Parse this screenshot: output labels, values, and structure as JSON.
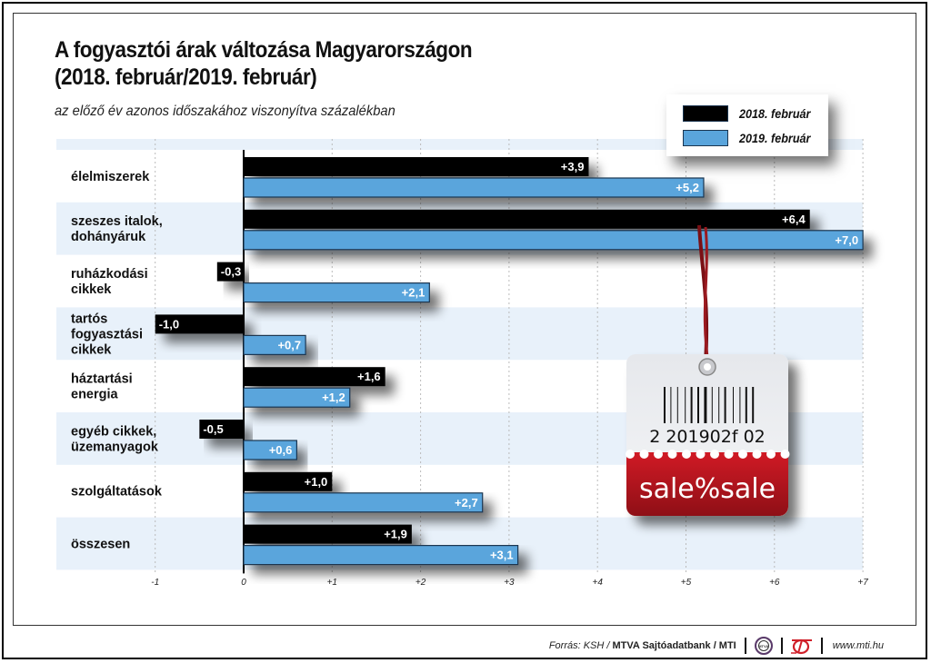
{
  "header": {
    "title_line1": "A fogyasztói árak változása Magyarországon",
    "title_line2": "(2018. február/2019. február)",
    "subtitle": "az előző év azonos időszakához viszonyítva százalékban"
  },
  "chart_data": {
    "type": "bar",
    "orientation": "horizontal",
    "title": "A fogyasztói árak változása Magyarországon (2018. február/2019. február)",
    "subtitle": "az előző év azonos időszakához viszonyítva százalékban",
    "categories": [
      "élelmiszerek",
      "szeszes italok, dohányáruk",
      "ruházkodási cikkek",
      "tartós fogyasztási cikkek",
      "háztartási energia",
      "egyéb cikkek, üzemanyagok",
      "szolgáltatások",
      "összesen"
    ],
    "category_lines": [
      [
        "élelmiszerek"
      ],
      [
        "szeszes italok,",
        "dohányáruk"
      ],
      [
        "ruházkodási",
        "cikkek"
      ],
      [
        "tartós",
        "fogyasztási",
        "cikkek"
      ],
      [
        "háztartási",
        "energia"
      ],
      [
        "egyéb cikkek,",
        "üzemanyagok"
      ],
      [
        "szolgáltatások"
      ],
      [
        "összesen"
      ]
    ],
    "series": [
      {
        "name": "2018. február",
        "color": "#000000",
        "values": [
          3.9,
          6.4,
          -0.3,
          -1.0,
          1.6,
          -0.5,
          1.0,
          1.9
        ],
        "labels": [
          "+3,9",
          "+6,4",
          "-0,3",
          "-1,0",
          "+1,6",
          "-0,5",
          "+1,0",
          "+1,9"
        ]
      },
      {
        "name": "2019. február",
        "color": "#5aa5dc",
        "values": [
          5.2,
          7.0,
          2.1,
          0.7,
          1.2,
          0.6,
          2.7,
          3.1
        ],
        "labels": [
          "+5,2",
          "+7,0",
          "+2,1",
          "+0,7",
          "+1,2",
          "+0,6",
          "+2,7",
          "+3,1"
        ]
      }
    ],
    "xlim": [
      -1,
      7
    ],
    "xticks": [
      -1,
      0,
      1,
      2,
      3,
      4,
      5,
      6,
      7
    ],
    "xtick_labels": [
      "-1",
      "0",
      "+1",
      "+2",
      "+3",
      "+4",
      "+5",
      "+6",
      "+7"
    ],
    "xlabel": "",
    "ylabel": "",
    "grid": true,
    "legend_position": "top-right",
    "row_shading": "#e8f1fa"
  },
  "decoration": {
    "price_tag_barcode": "2 201902f 02",
    "price_tag_text": "sale%sale",
    "price_tag_color": "#b5121b"
  },
  "footer": {
    "source_prefix": "Forrás: KSH / ",
    "source_bold": "MTVA Sajtóadatbank / MTI",
    "mtva_logo_text": "MTVA",
    "url": "www.mti.hu"
  }
}
